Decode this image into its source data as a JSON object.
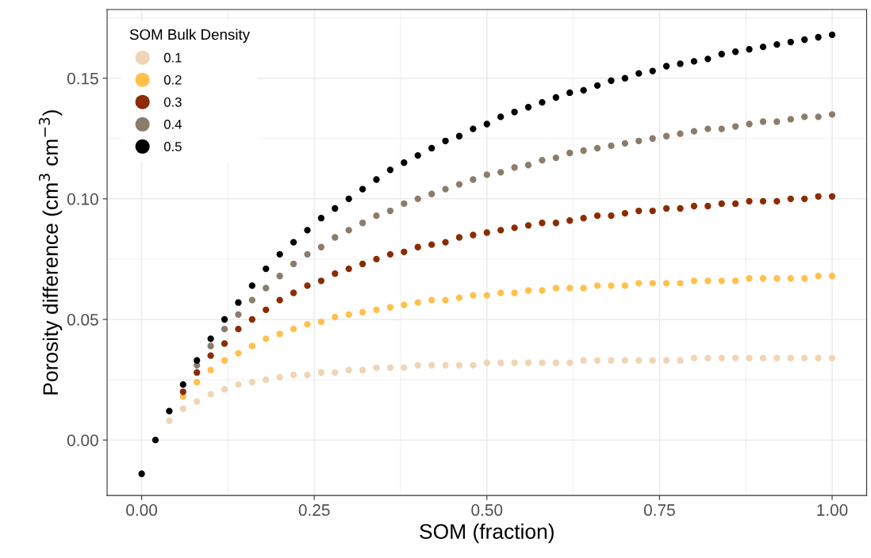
{
  "chart_data": {
    "type": "scatter",
    "xlabel": "SOM (fraction)",
    "ylabel": "Porosity difference (cm$^{3}$ cm$^{−3}$)",
    "legend_title": "SOM Bulk Density",
    "x": [
      0,
      0.02,
      0.04,
      0.06,
      0.08,
      0.1,
      0.12,
      0.14,
      0.16,
      0.18,
      0.2,
      0.22,
      0.24,
      0.26,
      0.28,
      0.3,
      0.32,
      0.34,
      0.36,
      0.38,
      0.4,
      0.42,
      0.44,
      0.46,
      0.48,
      0.5,
      0.52,
      0.54,
      0.56,
      0.58,
      0.6,
      0.62,
      0.64,
      0.66,
      0.68,
      0.7,
      0.72,
      0.74,
      0.76,
      0.78,
      0.8,
      0.82,
      0.84,
      0.86,
      0.88,
      0.9,
      0.92,
      0.94,
      0.96,
      0.98,
      1.0
    ],
    "series": [
      {
        "name": "0.1",
        "color": "#efd5b5",
        "values": [
          null,
          null,
          0.008,
          0.013,
          0.016,
          0.019,
          0.021,
          0.023,
          0.024,
          0.025,
          0.026,
          0.027,
          0.027,
          0.028,
          0.028,
          0.029,
          0.029,
          0.03,
          0.03,
          0.03,
          0.031,
          0.031,
          0.031,
          0.031,
          0.031,
          0.032,
          0.032,
          0.032,
          0.032,
          0.032,
          0.032,
          0.032,
          0.033,
          0.033,
          0.033,
          0.033,
          0.033,
          0.033,
          0.033,
          0.033,
          0.034,
          0.034,
          0.034,
          0.034,
          0.034,
          0.034,
          0.034,
          0.034,
          0.034,
          0.034,
          0.034
        ]
      },
      {
        "name": "0.2",
        "color": "#ffc04c",
        "values": [
          null,
          null,
          null,
          0.018,
          0.024,
          0.029,
          0.033,
          0.036,
          0.039,
          0.042,
          0.044,
          0.046,
          0.048,
          0.049,
          0.051,
          0.052,
          0.053,
          0.054,
          0.055,
          0.056,
          0.057,
          0.058,
          0.058,
          0.059,
          0.06,
          0.06,
          0.061,
          0.061,
          0.062,
          0.062,
          0.063,
          0.063,
          0.063,
          0.064,
          0.064,
          0.064,
          0.065,
          0.065,
          0.065,
          0.065,
          0.066,
          0.066,
          0.066,
          0.066,
          0.067,
          0.067,
          0.067,
          0.067,
          0.067,
          0.068,
          0.068
        ]
      },
      {
        "name": "0.3",
        "color": "#8b2c02",
        "values": [
          null,
          null,
          null,
          0.02,
          0.028,
          0.035,
          0.04,
          0.046,
          0.05,
          0.054,
          0.058,
          0.061,
          0.064,
          0.066,
          0.069,
          0.071,
          0.073,
          0.075,
          0.077,
          0.078,
          0.08,
          0.081,
          0.082,
          0.084,
          0.085,
          0.086,
          0.087,
          0.088,
          0.089,
          0.09,
          0.09,
          0.091,
          0.092,
          0.093,
          0.093,
          0.094,
          0.095,
          0.095,
          0.096,
          0.096,
          0.097,
          0.097,
          0.098,
          0.098,
          0.099,
          0.099,
          0.099,
          0.1,
          0.1,
          0.101,
          0.101
        ]
      },
      {
        "name": "0.4",
        "color": "#8b7d6b",
        "values": [
          null,
          null,
          null,
          null,
          0.031,
          0.039,
          0.046,
          0.052,
          0.058,
          0.063,
          0.068,
          0.073,
          0.077,
          0.08,
          0.084,
          0.087,
          0.09,
          0.093,
          0.095,
          0.098,
          0.1,
          0.102,
          0.104,
          0.106,
          0.108,
          0.11,
          0.111,
          0.113,
          0.114,
          0.116,
          0.117,
          0.119,
          0.12,
          0.121,
          0.122,
          0.123,
          0.124,
          0.125,
          0.126,
          0.127,
          0.128,
          0.129,
          0.129,
          0.13,
          0.131,
          0.132,
          0.132,
          0.133,
          0.134,
          0.134,
          0.135
        ]
      },
      {
        "name": "0.5",
        "color": "#000000",
        "values": [
          -0.014,
          0.0,
          0.012,
          0.023,
          0.033,
          0.042,
          0.05,
          0.057,
          0.064,
          0.071,
          0.077,
          0.082,
          0.087,
          0.092,
          0.096,
          0.1,
          0.104,
          0.108,
          0.112,
          0.115,
          0.118,
          0.121,
          0.124,
          0.126,
          0.129,
          0.131,
          0.134,
          0.136,
          0.138,
          0.14,
          0.142,
          0.144,
          0.145,
          0.147,
          0.149,
          0.15,
          0.152,
          0.153,
          0.155,
          0.156,
          0.157,
          0.158,
          0.16,
          0.161,
          0.162,
          0.163,
          0.164,
          0.165,
          0.166,
          0.167,
          0.168
        ]
      }
    ],
    "xlim": [
      -0.05,
      1.05
    ],
    "ylim": [
      -0.023,
      0.1785
    ],
    "xticks": [
      {
        "value": 0,
        "label": "0.00"
      },
      0.25,
      {
        "value": 0.5,
        "label": "0.50"
      },
      0.75,
      {
        "value": 1,
        "label": "1.00"
      }
    ],
    "yticks": [
      {
        "value": 0,
        "label": "0.00"
      },
      0.05,
      {
        "value": 0.1,
        "label": "0.10"
      },
      0.15
    ],
    "grid": true,
    "legend": "top left",
    "marker": "circle"
  }
}
